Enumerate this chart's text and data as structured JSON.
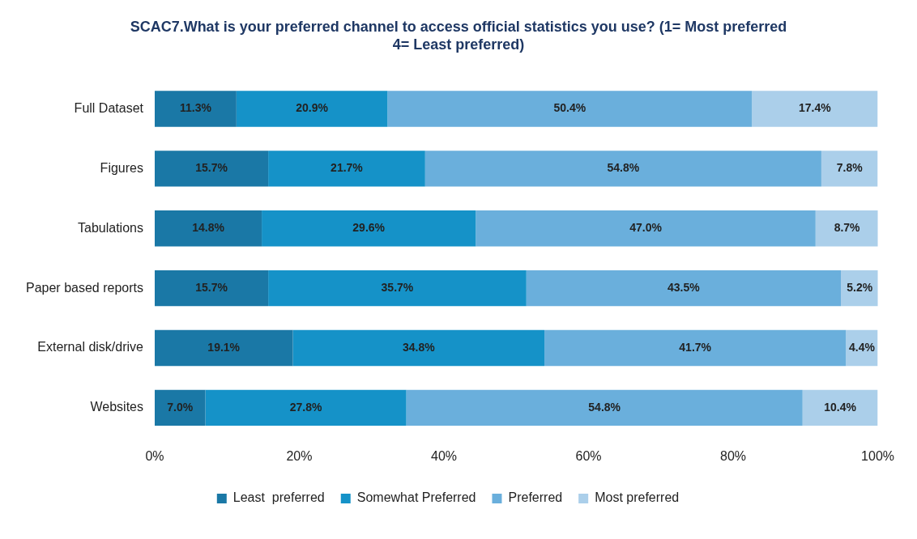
{
  "chart_data": {
    "type": "bar",
    "orientation": "horizontal",
    "stacked": true,
    "title": "SCAC7.What is your preferred channel to access official statistics you use? (1= Most preferred 4= Least preferred)",
    "categories": [
      "Full Dataset",
      "Figures",
      "Tabulations",
      "Paper based reports",
      "External disk/drive",
      "Websites"
    ],
    "series": [
      {
        "name": "Least  preferred",
        "color": "#1a78a6",
        "values": [
          11.3,
          15.7,
          14.8,
          15.7,
          19.1,
          7.0
        ],
        "value_labels": [
          "11.3%",
          "15.7%",
          "14.8%",
          "15.7%",
          "19.1%",
          "7.0%"
        ]
      },
      {
        "name": "Somewhat Preferred",
        "color": "#1592c8",
        "values": [
          20.9,
          21.7,
          29.6,
          35.7,
          34.8,
          27.8
        ],
        "value_labels": [
          "20.9%",
          "21.7%",
          "29.6%",
          "35.7%",
          "34.8%",
          "27.8%"
        ]
      },
      {
        "name": "Preferred",
        "color": "#6aafdc",
        "values": [
          50.4,
          54.8,
          47.0,
          43.5,
          41.7,
          54.8
        ],
        "value_labels": [
          "50.4%",
          "54.8%",
          "47.0%",
          "43.5%",
          "41.7%",
          "54.8%"
        ]
      },
      {
        "name": "Most preferred",
        "color": "#abcfea",
        "values": [
          17.4,
          7.8,
          8.7,
          5.2,
          4.4,
          10.4
        ],
        "value_labels": [
          "17.4%",
          "7.8%",
          "8.7%",
          "5.2%",
          "4.4%",
          "10.4%"
        ]
      }
    ],
    "xlim": [
      0,
      100
    ],
    "xticks": [
      {
        "value": 0,
        "label": "0%"
      },
      {
        "value": 20,
        "label": "20%"
      },
      {
        "value": 40,
        "label": "40%"
      },
      {
        "value": 60,
        "label": "60%"
      },
      {
        "value": 80,
        "label": "80%"
      },
      {
        "value": 100,
        "label": "100%"
      }
    ],
    "grid": false,
    "legend": "bottom"
  }
}
